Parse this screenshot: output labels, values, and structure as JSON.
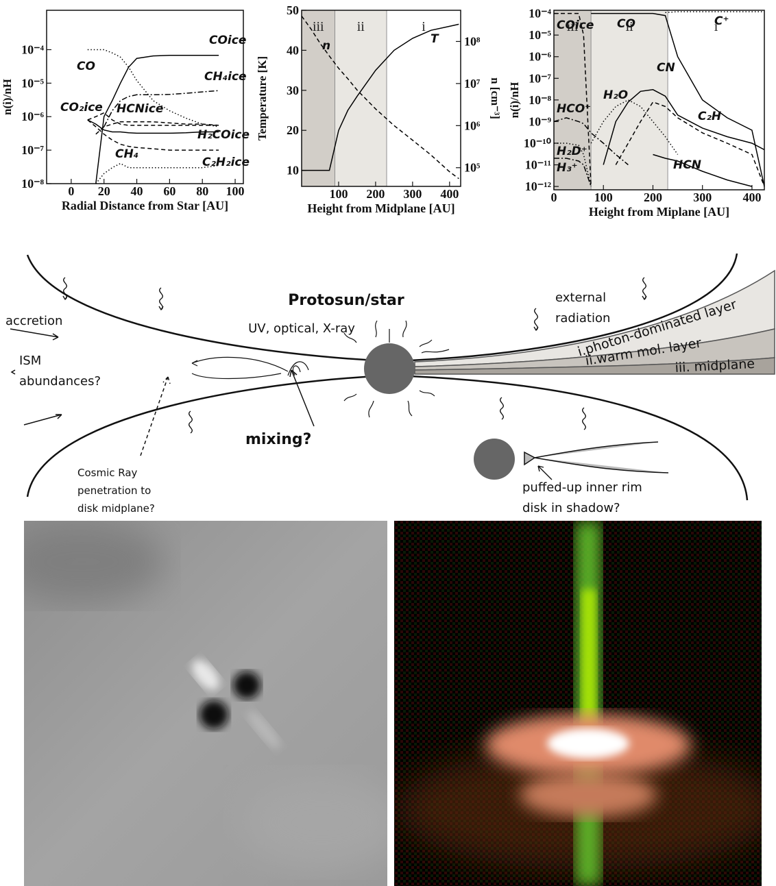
{
  "chart_data": [
    {
      "type": "line",
      "xlabel": "Radial Distance from Star [AU]",
      "ylabel": "n(i)/nH",
      "log_y": true,
      "xlim": [
        -15,
        105
      ],
      "xticks": [
        0,
        20,
        40,
        60,
        80,
        100
      ],
      "ylim": [
        1e-08,
        0.0015
      ],
      "yticks": [
        {
          "value": 1e-08,
          "label": "10⁻⁸"
        },
        {
          "value": 1e-07,
          "label": "10⁻⁷"
        },
        {
          "value": 1e-06,
          "label": "10⁻⁶"
        },
        {
          "value": 1e-05,
          "label": "10⁻⁵"
        },
        {
          "value": 0.0001,
          "label": "10⁻⁴"
        }
      ],
      "x": [
        10,
        15,
        20,
        25,
        30,
        35,
        40,
        50,
        60,
        70,
        80,
        90
      ],
      "series": [
        {
          "name": "CO",
          "color": "#000000",
          "style": "dotted",
          "values": [
            0.0001,
            0.0001,
            0.0001,
            8e-05,
            6e-05,
            3e-05,
            1.2e-05,
            3e-06,
            1.5e-06,
            9e-07,
            6e-07,
            5e-07
          ]
        },
        {
          "name": "COice",
          "color": "#000000",
          "style": "solid",
          "values": [
            null,
            1e-08,
            1e-06,
            3e-06,
            1e-05,
            3e-05,
            5.5e-05,
            6.5e-05,
            6.8e-05,
            6.8e-05,
            6.8e-05,
            6.8e-05
          ]
        },
        {
          "name": "CH₄ice",
          "color": "#000000",
          "style": "dashdot",
          "values": [
            null,
            null,
            5e-07,
            1.5e-06,
            3e-06,
            4e-06,
            4.5e-06,
            4.5e-06,
            4.6e-06,
            5e-06,
            5.5e-06,
            6e-06
          ]
        },
        {
          "name": "CO₂ice",
          "color": "#000000",
          "style": "dashed",
          "values": [
            8e-07,
            1e-06,
            1.3e-06,
            8e-07,
            6e-07,
            5.5e-07,
            5.5e-07,
            5.5e-07,
            5.5e-07,
            5.5e-07,
            5.5e-07,
            5.5e-07
          ]
        },
        {
          "name": "HCNice",
          "color": "#000000",
          "style": "dashed",
          "values": [
            null,
            3e-07,
            5e-07,
            6e-07,
            7e-07,
            7e-07,
            7e-07,
            7e-07,
            6.5e-07,
            6e-07,
            6e-07,
            5.5e-07
          ]
        },
        {
          "name": "H₂COice",
          "color": "#000000",
          "style": "solid",
          "values": [
            8e-07,
            6e-07,
            4e-07,
            3.5e-07,
            3.5e-07,
            3.3e-07,
            3.2e-07,
            3.2e-07,
            3.2e-07,
            3.3e-07,
            3.5e-07,
            3.5e-07
          ]
        },
        {
          "name": "CH₄",
          "color": "#000000",
          "style": "dashed",
          "values": [
            8e-07,
            5e-07,
            3e-07,
            2e-07,
            1.5e-07,
            1.3e-07,
            1.2e-07,
            1.1e-07,
            1e-07,
            1e-07,
            1e-07,
            1e-07
          ]
        },
        {
          "name": "C₂H₂ice",
          "color": "#000000",
          "style": "dotted",
          "values": [
            null,
            1e-08,
            2e-08,
            3e-08,
            4e-08,
            3e-08,
            3e-08,
            3e-08,
            3e-08,
            3e-08,
            3e-08,
            3.5e-08
          ]
        }
      ]
    },
    {
      "type": "line",
      "xlabel": "Height from Midplane [AU]",
      "ylabel": "Temperature [K]",
      "y2label": "n [cm⁻³]",
      "log_y2": true,
      "xlim": [
        0,
        430
      ],
      "xticks": [
        100,
        200,
        300,
        400
      ],
      "ylim": [
        6,
        50
      ],
      "yticks": [
        10,
        20,
        30,
        40,
        50
      ],
      "y2lim": [
        36000,
        550000000
      ],
      "y2ticks": [
        {
          "value": 100000,
          "label": "10⁵"
        },
        {
          "value": 1000000,
          "label": "10⁶"
        },
        {
          "value": 10000000,
          "label": "10⁷"
        },
        {
          "value": 100000000,
          "label": "10⁸"
        }
      ],
      "regions": [
        {
          "label": "iii",
          "from": 0,
          "to": 90,
          "color": "#d2cec8"
        },
        {
          "label": "ii",
          "from": 90,
          "to": 230,
          "color": "#e9e7e2"
        },
        {
          "label": "i",
          "from": 230,
          "to": 430,
          "color": "#ffffff"
        }
      ],
      "x": [
        0,
        25,
        50,
        75,
        90,
        100,
        125,
        150,
        200,
        250,
        300,
        350,
        400,
        425
      ],
      "series": [
        {
          "name": "T",
          "color": "#000000",
          "style": "solid",
          "values": [
            10,
            10,
            10,
            10,
            16,
            20,
            25,
            28.5,
            35,
            40,
            43,
            45,
            46,
            46.5
          ]
        },
        {
          "name": "n",
          "color": "#000000",
          "style": "dashed",
          "axis": "y2",
          "values": [
            400000000,
            200000000,
            90000000,
            45000000,
            30000000,
            23000000,
            13000000,
            7000000,
            2500000,
            1000000,
            450000,
            200000,
            80000,
            55000
          ]
        }
      ]
    },
    {
      "type": "line",
      "xlabel": "Height from Miplane [AU]",
      "ylabel": "n(i)/nH",
      "log_y": true,
      "xlim": [
        0,
        425
      ],
      "xticks": [
        0,
        100,
        200,
        300,
        400
      ],
      "ylim": [
        7e-13,
        0.00014
      ],
      "yticks": [
        {
          "value": 1e-12,
          "label": "10⁻¹²"
        },
        {
          "value": 1e-11,
          "label": "10⁻¹¹"
        },
        {
          "value": 1e-10,
          "label": "10⁻¹⁰"
        },
        {
          "value": 1e-09,
          "label": "10⁻⁹"
        },
        {
          "value": 1e-08,
          "label": "10⁻⁸"
        },
        {
          "value": 1e-07,
          "label": "10⁻⁷"
        },
        {
          "value": 1e-06,
          "label": "10⁻⁶"
        },
        {
          "value": 1e-05,
          "label": "10⁻⁵"
        },
        {
          "value": 0.0001,
          "label": "10⁻⁴"
        }
      ],
      "regions": [
        {
          "label": "iii",
          "from": 0,
          "to": 75,
          "color": "#d2cec8"
        },
        {
          "label": "ii",
          "from": 75,
          "to": 230,
          "color": "#e9e7e2"
        },
        {
          "label": "i",
          "from": 230,
          "to": 425,
          "color": "#ffffff"
        }
      ],
      "x": [
        0,
        25,
        50,
        60,
        75,
        100,
        125,
        150,
        175,
        200,
        225,
        250,
        300,
        350,
        400,
        425
      ],
      "series": [
        {
          "name": "COice",
          "color": "#000000",
          "style": "dashed",
          "values": [
            0.0001,
            0.0001,
            0.0001,
            1e-05,
            1e-12,
            null,
            null,
            null,
            null,
            null,
            null,
            null,
            null,
            null,
            null,
            null
          ]
        },
        {
          "name": "CO",
          "color": "#000000",
          "style": "solid",
          "values": [
            null,
            null,
            null,
            null,
            0.0001,
            0.0001,
            0.0001,
            0.0001,
            0.0001,
            0.0001,
            8e-05,
            1e-06,
            1e-08,
            1.5e-09,
            4e-10,
            1e-12
          ]
        },
        {
          "name": "C⁺",
          "color": "#000000",
          "style": "dotted",
          "values": [
            null,
            null,
            null,
            null,
            null,
            null,
            null,
            null,
            null,
            null,
            0.00011,
            0.00012,
            0.00012,
            0.00012,
            0.00012,
            0.00012
          ]
        },
        {
          "name": "CN",
          "color": "#000000",
          "style": "solid",
          "values": [
            null,
            null,
            null,
            null,
            null,
            1e-11,
            1e-09,
            8e-09,
            2.5e-08,
            3e-08,
            1.5e-08,
            2e-09,
            5e-10,
            2e-10,
            1e-10,
            5e-11
          ]
        },
        {
          "name": "C₂H",
          "color": "#000000",
          "style": "dashed",
          "values": [
            null,
            null,
            null,
            null,
            null,
            null,
            1e-11,
            1e-10,
            1e-09,
            8e-09,
            5e-09,
            1.5e-09,
            3e-10,
            1e-10,
            3e-11,
            1e-12
          ]
        },
        {
          "name": "HCN",
          "color": "#000000",
          "style": "solid",
          "values": [
            null,
            null,
            null,
            null,
            null,
            null,
            null,
            null,
            null,
            3e-11,
            2e-11,
            1.5e-11,
            5e-12,
            2e-12,
            1e-12,
            null
          ]
        },
        {
          "name": "H₂O",
          "color": "#000000",
          "style": "dotted",
          "values": [
            null,
            null,
            null,
            null,
            1e-10,
            1e-09,
            5e-09,
            1e-08,
            5e-09,
            1e-09,
            2e-10,
            3e-11,
            null,
            null,
            null,
            null
          ]
        },
        {
          "name": "HCO⁺",
          "color": "#000000",
          "style": "dashdot",
          "values": [
            1e-09,
            1.5e-09,
            1e-09,
            8e-10,
            3e-10,
            1e-10,
            3e-11,
            1e-11,
            null,
            null,
            null,
            null,
            null,
            null,
            null,
            null
          ]
        },
        {
          "name": "H₂D⁺",
          "color": "#000000",
          "style": "dotted",
          "values": [
            1e-10,
            1e-10,
            8e-11,
            3e-11,
            1e-12,
            null,
            null,
            null,
            null,
            null,
            null,
            null,
            null,
            null,
            null,
            null
          ]
        },
        {
          "name": "H₃⁺",
          "color": "#000000",
          "style": "dashdot",
          "values": [
            2e-11,
            2e-11,
            1.5e-11,
            1e-11,
            1e-12,
            null,
            null,
            null,
            null,
            null,
            null,
            null,
            null,
            null,
            null,
            null
          ]
        }
      ]
    }
  ],
  "diagram": {
    "star": "Protosun/star",
    "radiation": "UV, optical, X-ray",
    "external": [
      "external",
      "radiation"
    ],
    "accretion": "accretion",
    "ism": [
      "ISM",
      "abundances?"
    ],
    "layers": [
      "i.photon-dominated layer",
      "ii.warm mol. layer",
      "iii. midplane"
    ],
    "mixing": "mixing?",
    "cosmic": [
      "Cosmic Ray",
      "penetration to",
      "disk midplane?"
    ],
    "rim": [
      "puffed-up inner rim",
      "disk in shadow?"
    ]
  }
}
